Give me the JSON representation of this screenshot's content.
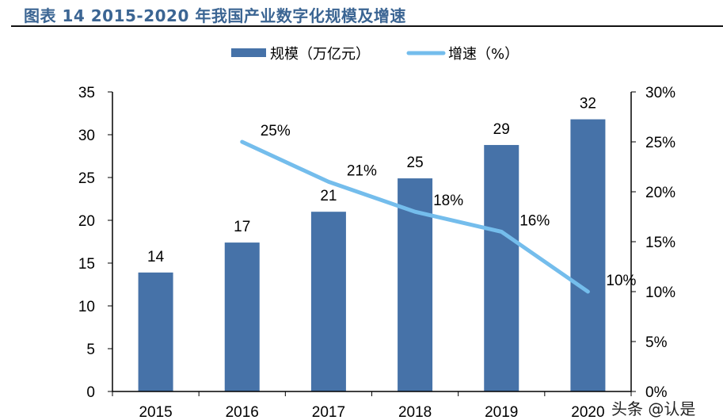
{
  "title": "图表 14 2015-2020 年我国产业数字化规模及增速",
  "watermark": "头条 @认是",
  "chart_data": {
    "type": "bar+line",
    "categories": [
      "2015",
      "2016",
      "2017",
      "2018",
      "2019",
      "2020"
    ],
    "series": [
      {
        "name": "规模（万亿元）",
        "type": "bar",
        "axis": "left",
        "values": [
          13.9,
          17.4,
          21.0,
          24.9,
          28.8,
          31.8
        ],
        "labels": [
          "14",
          "17",
          "21",
          "25",
          "29",
          "32"
        ],
        "color": "#4672a8"
      },
      {
        "name": "增速（%）",
        "type": "line",
        "axis": "right",
        "values": [
          null,
          25,
          21,
          18,
          16,
          10
        ],
        "labels": [
          "",
          "25%",
          "21%",
          "18%",
          "16%",
          "10%"
        ],
        "color": "#74bdec"
      }
    ],
    "y_left": {
      "range": [
        0,
        35
      ],
      "ticks": [
        "0",
        "5",
        "10",
        "15",
        "20",
        "25",
        "30",
        "35"
      ]
    },
    "y_right": {
      "range": [
        0,
        30
      ],
      "ticks": [
        "0%",
        "5%",
        "10%",
        "15%",
        "20%",
        "25%",
        "30%"
      ]
    },
    "legend": "top",
    "grid": false
  }
}
